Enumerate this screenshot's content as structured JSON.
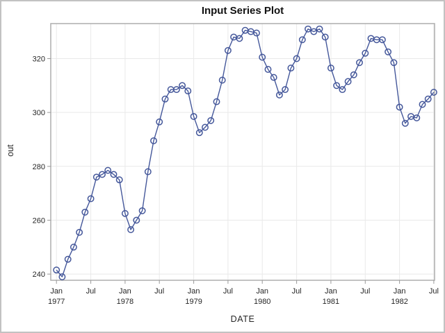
{
  "chart_data": {
    "type": "line",
    "title": "Input Series Plot",
    "xlabel": "DATE",
    "ylabel": "out",
    "series_name": "out",
    "frequency": "monthly",
    "start": "Jan 1977",
    "end": "Jul 1982",
    "marker": "open-circle",
    "grid": true,
    "legend": "none",
    "xlim_months": [
      -1,
      66.13
    ],
    "ylim": [
      237.7,
      333
    ],
    "y_ticks": [
      240,
      260,
      280,
      300,
      320
    ],
    "tick_interval_months": 6,
    "x_ticks": [
      {
        "month": "Jan",
        "year": "1977"
      },
      {
        "month": "Jul"
      },
      {
        "month": "Jan",
        "year": "1978"
      },
      {
        "month": "Jul"
      },
      {
        "month": "Jan",
        "year": "1979"
      },
      {
        "month": "Jul"
      },
      {
        "month": "Jan",
        "year": "1980"
      },
      {
        "month": "Jul"
      },
      {
        "month": "Jan",
        "year": "1981"
      },
      {
        "month": "Jul"
      },
      {
        "month": "Jan",
        "year": "1982"
      },
      {
        "month": "Jul"
      }
    ],
    "values": [
      241.5,
      239,
      245.5,
      250,
      255.5,
      263,
      268,
      276,
      277,
      278.5,
      277,
      275,
      262.5,
      256.5,
      260,
      263.5,
      278,
      289.5,
      296.5,
      305,
      308.5,
      308.5,
      310,
      308,
      298.5,
      292.5,
      294.5,
      297,
      304,
      312,
      323,
      328,
      327.5,
      330.5,
      330,
      329.5,
      320.5,
      316,
      313,
      306.5,
      308.5,
      316.5,
      320,
      327,
      331,
      330,
      331,
      328,
      316.5,
      310,
      308.5,
      311.5,
      314,
      318.5,
      322,
      327.5,
      327,
      327,
      322.5,
      318.5,
      302,
      296,
      298.5,
      298,
      303,
      305,
      307.5
    ],
    "colors": {
      "series": "#44579a",
      "grid": "#e9e9e9",
      "frame": "#b2b2b2",
      "tick": "#999999",
      "text": "#262626",
      "title": "#121212",
      "background": "#ffffff",
      "border": "#c2c2c2"
    }
  }
}
